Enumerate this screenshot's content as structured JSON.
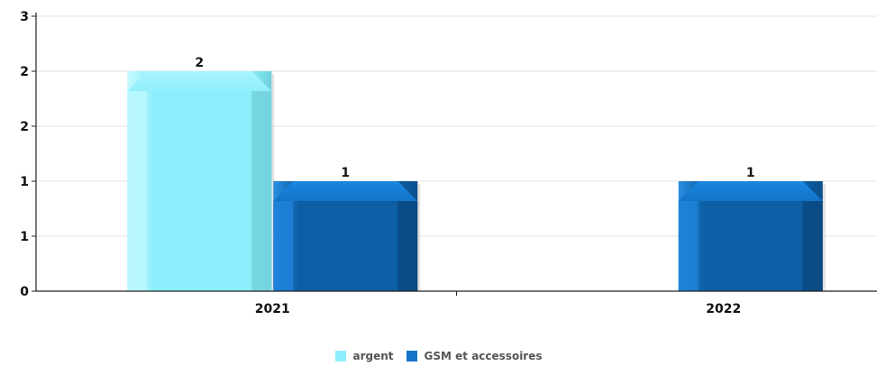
{
  "chart_data": {
    "type": "bar",
    "categories": [
      "2021",
      "2022"
    ],
    "series": [
      {
        "name": "argent",
        "values": [
          2,
          null
        ],
        "color": "#8EEFFC"
      },
      {
        "name": "GSM et accessoires",
        "values": [
          1,
          1
        ],
        "color": "#1473C9"
      }
    ],
    "data_labels": [
      [
        "2",
        null
      ],
      [
        "1",
        "1"
      ]
    ],
    "y_tick_labels": [
      "0",
      "1",
      "1",
      "2",
      "2",
      "3"
    ],
    "ylim": [
      0,
      2.5
    ],
    "grid": true,
    "legend_position": "bottom-center",
    "title": "",
    "xlabel": "",
    "ylabel": ""
  }
}
